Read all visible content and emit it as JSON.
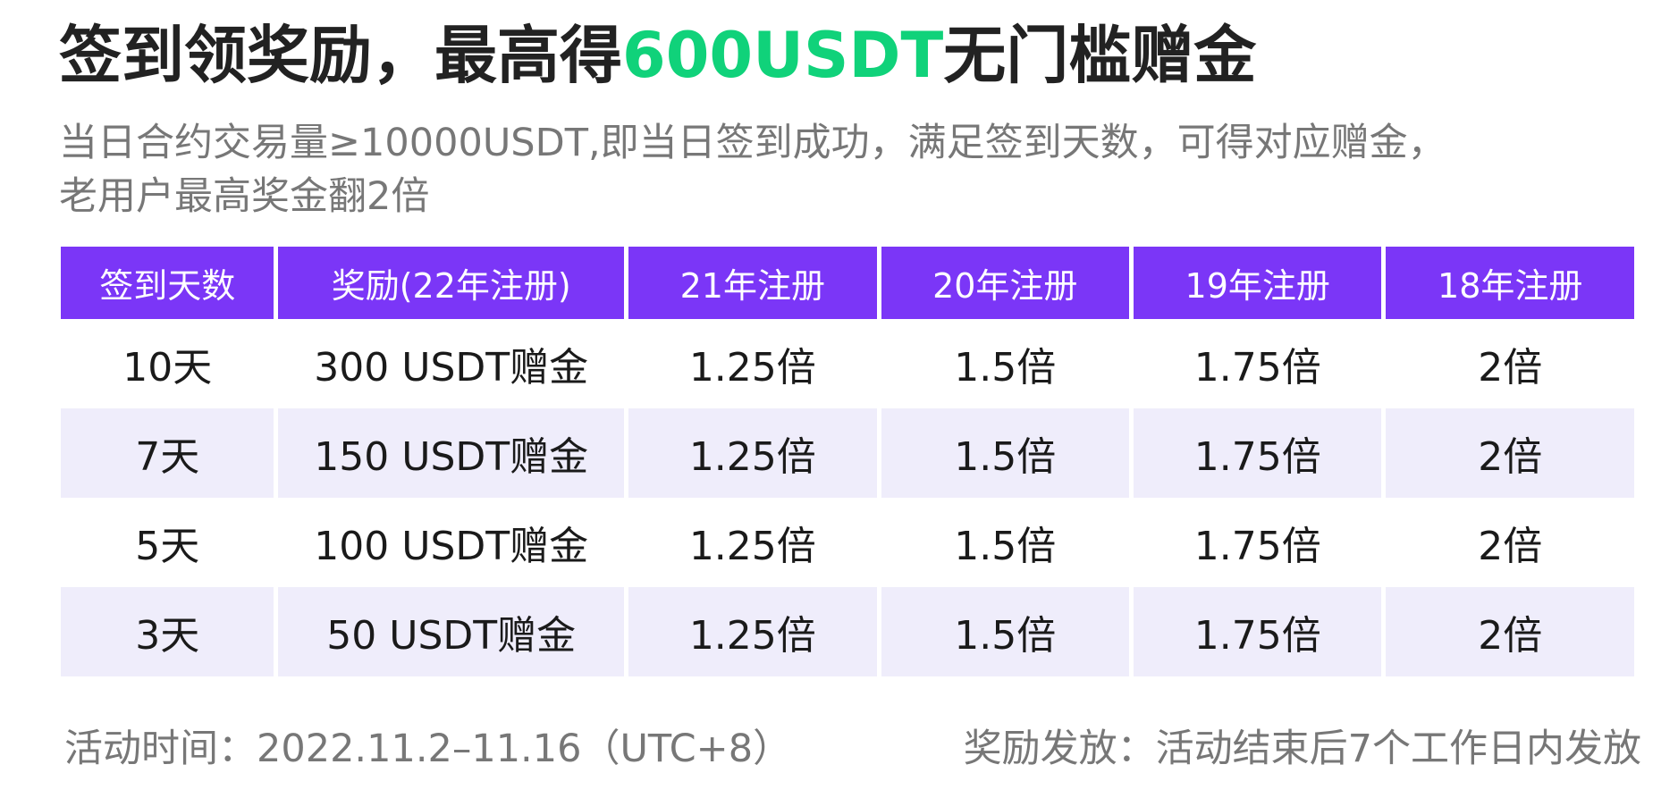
{
  "heading": {
    "prefix": "签到领奖励，最高得",
    "highlight": "600USDT",
    "suffix": "无门槛赠金"
  },
  "colors": {
    "accent_green": "#10d27a",
    "header_purple": "#7b36f7",
    "row_alt": "#efedfb"
  },
  "description": {
    "line1": "当日合约交易量≥10000USDT,即当日签到成功，满足签到天数，可得对应赠金，",
    "line2": "老用户最高奖金翻2倍"
  },
  "table": {
    "headers": [
      "签到天数",
      "奖励(22年注册)",
      "21年注册",
      "20年注册",
      "19年注册",
      "18年注册"
    ],
    "rows": [
      [
        "10天",
        "300 USDT赠金",
        "1.25倍",
        "1.5倍",
        "1.75倍",
        "2倍"
      ],
      [
        "7天",
        "150 USDT赠金",
        "1.25倍",
        "1.5倍",
        "1.75倍",
        "2倍"
      ],
      [
        "5天",
        "100 USDT赠金",
        "1.25倍",
        "1.5倍",
        "1.75倍",
        "2倍"
      ],
      [
        "3天",
        "50 USDT赠金",
        "1.25倍",
        "1.5倍",
        "1.75倍",
        "2倍"
      ]
    ]
  },
  "footer": {
    "activity_time": "活动时间：2022.11.2–11.16（UTC+8）",
    "reward_distribution": "奖励发放：活动结束后7个工作日内发放"
  }
}
